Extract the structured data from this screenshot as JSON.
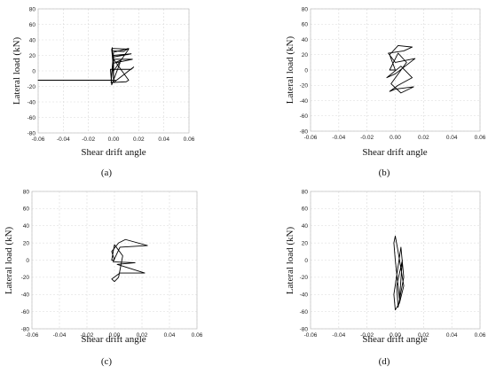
{
  "chart_data": [
    {
      "type": "line",
      "panel": "a",
      "caption": "(a)",
      "xlabel": "Shear drift angle",
      "ylabel": "Lateral load (kN)",
      "xlim": [
        -0.06,
        0.06
      ],
      "ylim": [
        -80,
        80
      ],
      "xticks": [
        "-0.06",
        "-0.04",
        "-0.02",
        "0.00",
        "0.02",
        "0.04",
        "0.06"
      ],
      "yticks": [
        "80",
        "60",
        "40",
        "20",
        "0",
        "-20",
        "-40",
        "-60",
        "-80"
      ],
      "grid": true,
      "series": [
        {
          "x": [
            0.0,
            -0.0015,
            -0.001,
            -0.0015,
            0.008,
            0.012,
            0.0,
            -0.002,
            0.0015,
            0.0,
            -0.06,
            0.0,
            0.0,
            0.014,
            0.0,
            -0.002,
            0.01,
            0.012,
            0.0,
            0.015,
            0.0,
            0.006,
            -0.0015,
            -0.0025,
            0.0,
            0.014,
            0.016,
            0.0,
            -0.001,
            0.012,
            0.0
          ],
          "y": [
            0,
            28,
            30,
            26,
            25,
            29,
            24,
            -12,
            -12,
            -12,
            -12,
            -12,
            20,
            22,
            18,
            -15,
            -14,
            -12,
            15,
            15,
            10,
            14,
            -18,
            2,
            2,
            2,
            5,
            -15,
            29,
            28,
            0
          ]
        }
      ]
    },
    {
      "type": "line",
      "panel": "b",
      "caption": "(b)",
      "xlabel": "Shear drift angle",
      "ylabel": "Lateral load (kN)",
      "xlim": [
        -0.06,
        0.06
      ],
      "ylim": [
        -80,
        80
      ],
      "xticks": [
        "-0.06",
        "-0.04",
        "-0.02",
        "0.00",
        "0.02",
        "0.04",
        "0.06"
      ],
      "yticks": [
        "80",
        "60",
        "40",
        "20",
        "0",
        "-20",
        "-40",
        "-60",
        "-80"
      ],
      "grid": true,
      "series": [
        {
          "x": [
            0.0,
            -0.004,
            0.002,
            0.012,
            0.006,
            -0.005,
            0.0,
            0.014,
            0.0,
            -0.006,
            0.004,
            0.012,
            0.002,
            -0.004,
            0.0,
            0.013,
            0.004,
            -0.003,
            0.008,
            0.002,
            -0.004,
            0.0
          ],
          "y": [
            0,
            20,
            32,
            30,
            25,
            22,
            10,
            15,
            -5,
            -10,
            5,
            -10,
            -20,
            -28,
            -25,
            -22,
            -30,
            -18,
            10,
            22,
            0,
            0
          ]
        }
      ]
    },
    {
      "type": "line",
      "panel": "c",
      "caption": "(c)",
      "xlabel": "Shear drift angle",
      "ylabel": "Lateral load (kN)",
      "xlim": [
        -0.06,
        0.06
      ],
      "ylim": [
        -80,
        80
      ],
      "xticks": [
        "-0.06",
        "-0.04",
        "-0.02",
        "0.00",
        "0.02",
        "0.04",
        "0.06"
      ],
      "yticks": [
        "80",
        "60",
        "40",
        "20",
        "0",
        "-20",
        "-40",
        "-60",
        "-80"
      ],
      "grid": true,
      "series": [
        {
          "x": [
            0.0,
            -0.002,
            0.003,
            0.008,
            0.024,
            0.004,
            -0.001,
            0.015,
            0.002,
            0.022,
            0.004,
            -0.002,
            0.0,
            0.003,
            0.006,
            0.0,
            -0.002,
            0.0
          ],
          "y": [
            0,
            10,
            20,
            24,
            17,
            15,
            -2,
            -3,
            -5,
            -15,
            -15,
            -22,
            -25,
            -20,
            5,
            18,
            0,
            0
          ]
        }
      ]
    },
    {
      "type": "line",
      "panel": "d",
      "caption": "(d)",
      "xlabel": "Shear drift angle",
      "ylabel": "Lateral load (kN)",
      "xlim": [
        -0.06,
        0.06
      ],
      "ylim": [
        -80,
        80
      ],
      "xticks": [
        "-0.06",
        "-0.04",
        "-0.02",
        "0.00",
        "0.02",
        "0.04",
        "0.06"
      ],
      "yticks": [
        "80",
        "60",
        "40",
        "20",
        "0",
        "-20",
        "-40",
        "-60",
        "-80"
      ],
      "grid": true,
      "series": [
        {
          "x": [
            0.0,
            -0.001,
            0.0,
            0.002,
            0.004,
            0.006,
            0.003,
            0.0,
            -0.001,
            0.004,
            0.006,
            0.002,
            0.001,
            0.005,
            0.003,
            0.0
          ],
          "y": [
            0,
            20,
            28,
            10,
            -10,
            -30,
            -50,
            -58,
            -40,
            15,
            -20,
            -55,
            -30,
            0,
            -45,
            0
          ]
        }
      ]
    }
  ]
}
